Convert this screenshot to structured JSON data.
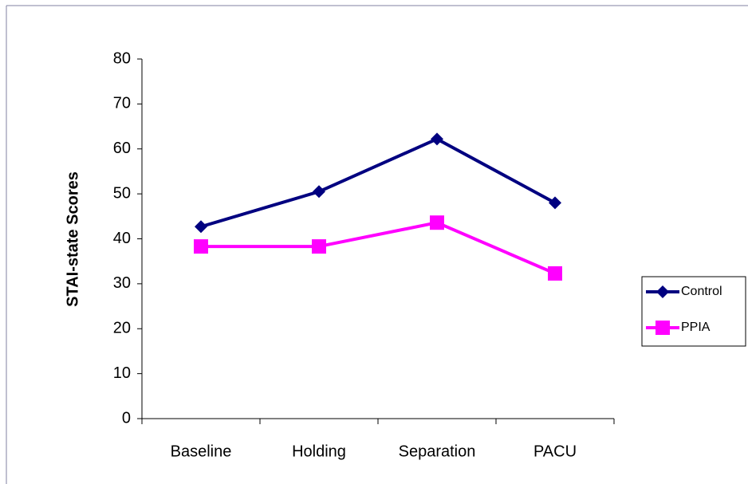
{
  "chart_data": {
    "type": "line",
    "y_label": "STAI-state Scores",
    "categories": [
      "Baseline",
      "Holding",
      "Separation",
      "PACU"
    ],
    "series": [
      {
        "name": "Control",
        "color": "#000080",
        "marker": "diamond",
        "values": [
          42.7,
          50.5,
          62.2,
          48.0
        ]
      },
      {
        "name": "PPIA",
        "color": "#ff00ff",
        "marker": "square",
        "values": [
          38.3,
          38.3,
          43.6,
          32.3
        ]
      }
    ],
    "ylim": [
      0,
      80
    ],
    "yticks": [
      0,
      10,
      20,
      30,
      40,
      50,
      60,
      70,
      80
    ],
    "grid": false,
    "legend": "right"
  }
}
